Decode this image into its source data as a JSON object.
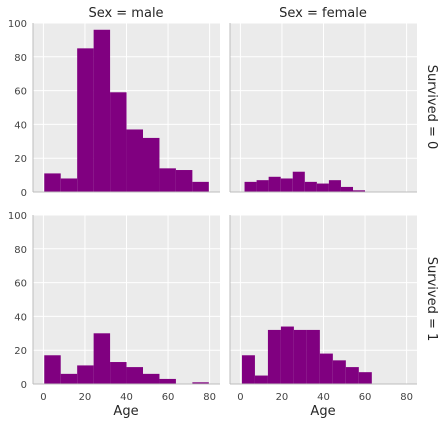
{
  "chart_data": {
    "type": "bar",
    "bar_color": "#800080",
    "panel_background": "#ebebeb",
    "grid": true,
    "xlim": [
      -5,
      85
    ],
    "ylim": [
      0,
      100
    ],
    "xticks": [
      0,
      20,
      40,
      60,
      80
    ],
    "yticks": [
      0,
      20,
      40,
      60,
      80,
      100
    ],
    "xlabel": "Age",
    "column_titles": [
      "Sex = male",
      "Sex = female"
    ],
    "row_titles": [
      "Survived = 0",
      "Survived = 1"
    ],
    "panels": [
      {
        "row": 0,
        "col": 0,
        "bin_edges": [
          0.42,
          8.34,
          16.26,
          24.18,
          32.1,
          40.02,
          47.94,
          55.86,
          63.78,
          71.7,
          79.62
        ],
        "counts": [
          11,
          8,
          85,
          96,
          59,
          37,
          32,
          14,
          13,
          6
        ]
      },
      {
        "row": 0,
        "col": 1,
        "bin_edges": [
          2.0,
          7.8,
          13.6,
          19.4,
          25.2,
          31.0,
          36.8,
          42.6,
          48.4,
          54.2,
          60.0
        ],
        "counts": [
          6,
          7,
          9,
          8,
          12,
          6,
          5,
          7,
          3,
          1
        ]
      },
      {
        "row": 1,
        "col": 0,
        "bin_edges": [
          0.42,
          8.34,
          16.26,
          24.18,
          32.1,
          40.02,
          47.94,
          55.86,
          63.78,
          71.7,
          79.62
        ],
        "counts": [
          17,
          6,
          11,
          30,
          13,
          10,
          6,
          3,
          0,
          1
        ]
      },
      {
        "row": 1,
        "col": 1,
        "bin_edges": [
          0.75,
          7.0,
          13.25,
          19.5,
          25.75,
          32.0,
          38.25,
          44.5,
          50.75,
          57.0,
          63.25
        ],
        "counts": [
          17,
          5,
          32,
          34,
          32,
          32,
          18,
          14,
          10,
          7
        ]
      }
    ]
  }
}
